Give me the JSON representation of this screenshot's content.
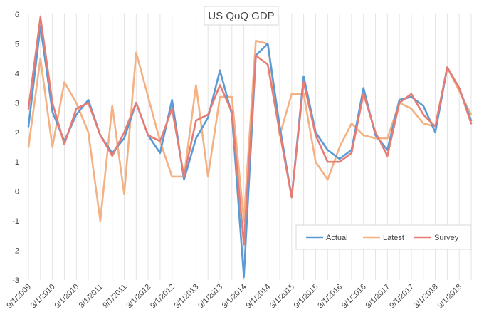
{
  "chart_data": {
    "type": "line",
    "title": "US QoQ GDP",
    "xlabel": "",
    "ylabel": "",
    "ylim": [
      -3,
      6
    ],
    "yticks": [
      -3,
      -2,
      -1,
      0,
      1,
      2,
      3,
      4,
      5,
      6
    ],
    "grid": "vertical",
    "legend_position": "bottom-right",
    "x_tick_labels": [
      "9/1/2009",
      "3/1/2010",
      "9/1/2010",
      "3/1/2011",
      "9/1/2011",
      "3/1/2012",
      "9/1/2012",
      "3/1/2013",
      "9/1/2013",
      "3/1/2014",
      "9/1/2014",
      "3/1/2015",
      "9/1/2015",
      "3/1/2016",
      "9/1/2016",
      "3/1/2017",
      "9/1/2017",
      "3/1/2018",
      "9/1/2018"
    ],
    "x": [
      "9/1/2009",
      "12/1/2009",
      "3/1/2010",
      "6/1/2010",
      "9/1/2010",
      "12/1/2010",
      "3/1/2011",
      "6/1/2011",
      "9/1/2011",
      "12/1/2011",
      "3/1/2012",
      "6/1/2012",
      "9/1/2012",
      "12/1/2012",
      "3/1/2013",
      "6/1/2013",
      "9/1/2013",
      "12/1/2013",
      "3/1/2014",
      "6/1/2014",
      "9/1/2014",
      "12/1/2014",
      "3/1/2015",
      "6/1/2015",
      "9/1/2015",
      "12/1/2015",
      "3/1/2016",
      "6/1/2016",
      "9/1/2016",
      "12/1/2016",
      "3/1/2017",
      "6/1/2017",
      "9/1/2017",
      "12/1/2017",
      "3/1/2018",
      "6/1/2018",
      "9/1/2018",
      "12/1/2018"
    ],
    "series": [
      {
        "name": "Actual",
        "color": "#5B9BD5",
        "values": [
          2.2,
          5.6,
          2.7,
          1.7,
          2.6,
          3.1,
          1.9,
          1.3,
          1.8,
          3.0,
          1.9,
          1.3,
          3.1,
          0.4,
          1.8,
          2.5,
          4.1,
          2.6,
          -2.9,
          4.6,
          5.0,
          2.2,
          -0.2,
          3.9,
          2.0,
          1.4,
          1.1,
          1.4,
          3.5,
          1.9,
          1.4,
          3.1,
          3.2,
          2.9,
          2.0,
          4.2,
          3.5,
          2.4
        ]
      },
      {
        "name": "Latest",
        "color": "#F4B183",
        "values": [
          1.5,
          4.5,
          1.5,
          3.7,
          3.0,
          2.0,
          -1.0,
          2.9,
          -0.1,
          4.7,
          3.2,
          1.7,
          0.5,
          0.5,
          3.6,
          0.5,
          3.2,
          3.2,
          -1.0,
          5.1,
          5.0,
          1.9,
          3.3,
          3.3,
          1.0,
          0.4,
          1.5,
          2.3,
          1.9,
          1.8,
          1.8,
          3.0,
          2.8,
          2.3,
          2.2,
          4.2,
          3.4,
          2.6
        ]
      },
      {
        "name": "Survey",
        "color": "#E67C73",
        "values": [
          2.8,
          5.9,
          3.0,
          1.6,
          2.8,
          3.0,
          1.9,
          1.2,
          2.0,
          3.0,
          1.9,
          1.7,
          2.8,
          0.5,
          2.4,
          2.6,
          3.6,
          2.7,
          -1.8,
          4.6,
          4.3,
          2.0,
          -0.2,
          3.7,
          1.9,
          1.0,
          1.0,
          1.3,
          3.3,
          2.0,
          1.2,
          3.0,
          3.3,
          2.6,
          2.2,
          4.2,
          3.5,
          2.3
        ]
      }
    ]
  }
}
